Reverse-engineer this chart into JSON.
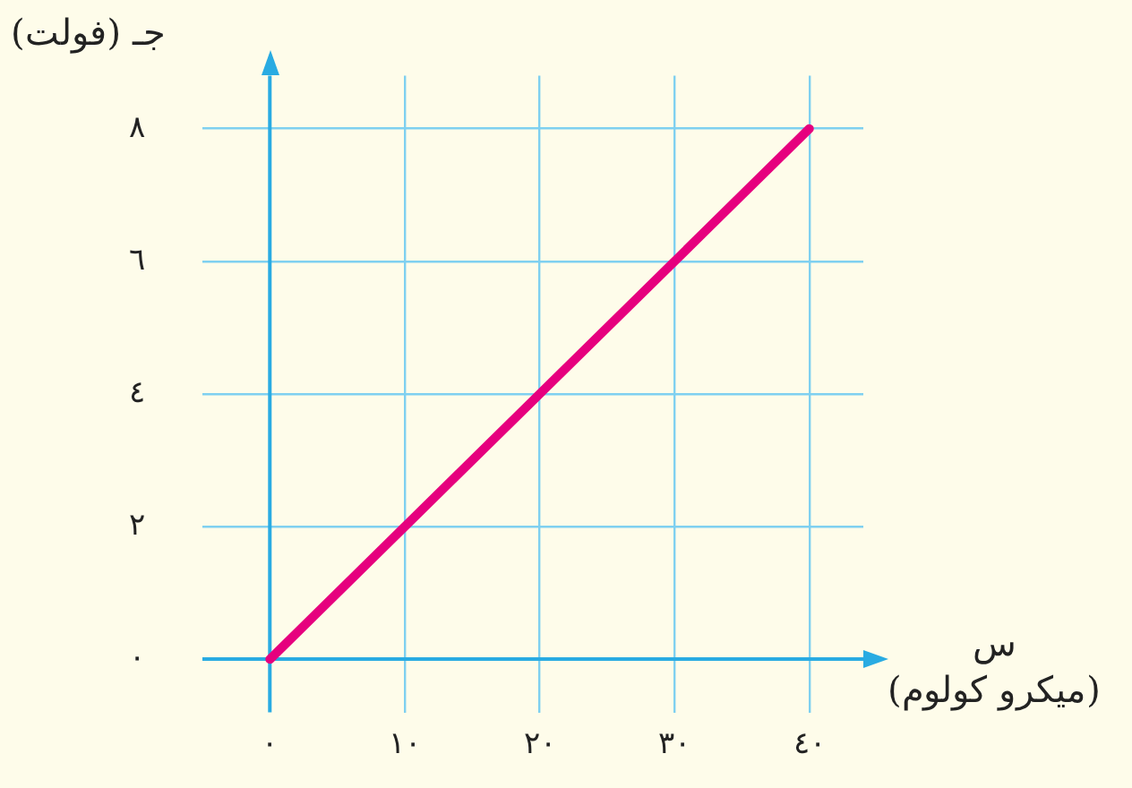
{
  "chart_data": {
    "type": "line",
    "xlabel": "س (ميكرو كولوم)",
    "ylabel": "جـ (فولت)",
    "x": [
      0,
      40
    ],
    "series": [
      {
        "color": "#e6007e",
        "values": [
          0,
          8
        ]
      }
    ],
    "xlim": [
      -5,
      44
    ],
    "ylim": [
      -0.8,
      8.8
    ],
    "xticks": [
      {
        "value": 0,
        "label": "٠"
      },
      {
        "value": 10,
        "label": "١٠"
      },
      {
        "value": 20,
        "label": "٢٠"
      },
      {
        "value": 30,
        "label": "٣٠"
      },
      {
        "value": 40,
        "label": "٤٠"
      }
    ],
    "yticks": [
      {
        "value": 0,
        "label": "٠"
      },
      {
        "value": 2,
        "label": "٢"
      },
      {
        "value": 4,
        "label": "٤"
      },
      {
        "value": 6,
        "label": "٦"
      },
      {
        "value": 8,
        "label": "٨"
      }
    ],
    "ref_lines": [
      {
        "axis": "x",
        "value": 0,
        "color": "#29abe2"
      }
    ],
    "grid": true,
    "legend": false,
    "marker": "none",
    "line_style": "solid"
  }
}
